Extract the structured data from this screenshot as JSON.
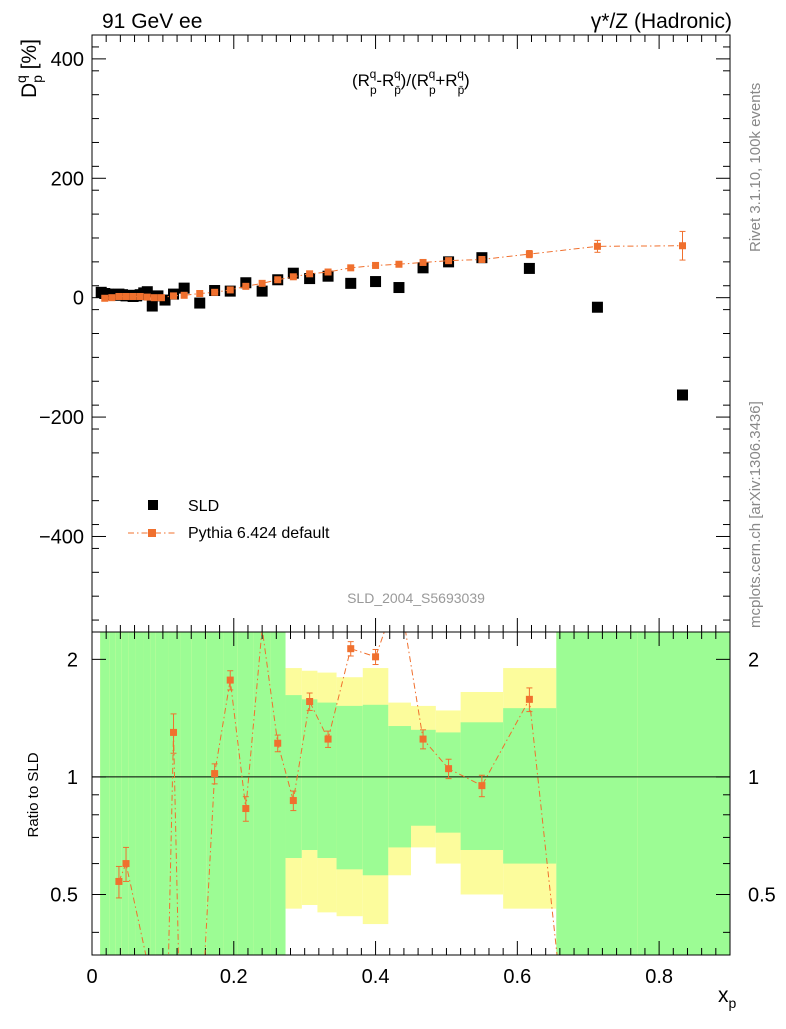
{
  "header": {
    "left": "91 GeV ee",
    "right": "γ*/Z (Hadronic)"
  },
  "side_text": {
    "rivet": "Rivet 3.1.10,  100k events",
    "mcplots": "mcplots.cern.ch [arXiv:1306.3436]"
  },
  "analysis_label": "SLD_2004_S5693039",
  "colors": {
    "data": "#000000",
    "mc": "#f0702e",
    "band_inner": "#9cfc94",
    "band_outer": "#fcfc9c"
  },
  "chart_data": [
    {
      "panel": "main",
      "type": "scatter",
      "ylabel": "D_p^q [%]",
      "annotation": "(R_p^q - R_p̄^q)/(R_p^q + R_p̄^q)",
      "xlim": [
        0,
        0.9
      ],
      "ylim": [
        -560,
        440
      ],
      "yticks": [
        -400,
        -200,
        0,
        200,
        400
      ],
      "ytick_labels": [
        "−400",
        "−200",
        "0",
        "200",
        "400"
      ],
      "legend_position": "lower-left",
      "series": [
        {
          "name": "SLD",
          "marker": "square",
          "x": [
            0.013,
            0.018,
            0.023,
            0.028,
            0.033,
            0.038,
            0.043,
            0.048,
            0.053,
            0.058,
            0.063,
            0.068,
            0.073,
            0.078,
            0.085,
            0.093,
            0.103,
            0.115,
            0.13,
            0.152,
            0.173,
            0.195,
            0.217,
            0.24,
            0.262,
            0.284,
            0.307,
            0.333,
            0.365,
            0.4,
            0.433,
            0.467,
            0.503,
            0.55,
            0.617,
            0.713,
            0.833
          ],
          "y": [
            9,
            7,
            6,
            5,
            4,
            6,
            5,
            3,
            4,
            2,
            3,
            5,
            8,
            10,
            -14,
            3,
            -4,
            6,
            16,
            -9,
            12,
            11,
            25,
            11,
            30,
            41,
            32,
            36,
            24,
            27,
            17,
            50,
            60,
            67,
            49,
            -16,
            -163
          ]
        },
        {
          "name": "Pythia 6.424 default",
          "marker": "square-dashdot",
          "x": [
            0.018,
            0.028,
            0.038,
            0.048,
            0.058,
            0.068,
            0.078,
            0.088,
            0.098,
            0.115,
            0.13,
            0.152,
            0.173,
            0.195,
            0.217,
            0.24,
            0.262,
            0.284,
            0.307,
            0.333,
            0.365,
            0.4,
            0.433,
            0.467,
            0.503,
            0.55,
            0.617,
            0.713,
            0.833
          ],
          "y": [
            -1,
            0,
            2,
            2,
            2,
            2,
            1,
            0,
            0,
            3,
            4,
            7,
            9,
            13,
            19,
            24,
            30,
            35,
            40,
            43,
            50,
            54,
            56,
            59,
            62,
            64,
            73,
            86,
            87
          ],
          "yerr": [
            3,
            3,
            3,
            3,
            3,
            3,
            3,
            3,
            3,
            3,
            3,
            3,
            3,
            3,
            3,
            3,
            3,
            3,
            3,
            3,
            3,
            3,
            3,
            3,
            3,
            4,
            6,
            10,
            24
          ]
        }
      ]
    },
    {
      "panel": "ratio",
      "type": "line",
      "ylabel": "Ratio to SLD",
      "xlabel": "x_p",
      "scale": "log",
      "xlim": [
        0,
        0.9
      ],
      "ylim": [
        0.35,
        2.35
      ],
      "xticks": [
        0,
        0.2,
        0.4,
        0.6,
        0.8
      ],
      "xtick_labels": [
        "0",
        "0.2",
        "0.4",
        "0.6",
        "0.8"
      ],
      "yticks": [
        0.5,
        1,
        2
      ],
      "ytick_labels": [
        "0.5",
        "1",
        "2"
      ],
      "bands": {
        "edges": [
          0.0115,
          0.0245,
          0.0335,
          0.042,
          0.052,
          0.062,
          0.072,
          0.082,
          0.09,
          0.108,
          0.125,
          0.14,
          0.162,
          0.185,
          0.205,
          0.228,
          0.252,
          0.273,
          0.296,
          0.318,
          0.345,
          0.382,
          0.418,
          0.45,
          0.485,
          0.52,
          0.58,
          0.655,
          0.77,
          0.9
        ],
        "inner_lo": [
          0.35,
          0.35,
          0.35,
          0.35,
          0.35,
          0.35,
          0.35,
          0.35,
          0.35,
          0.35,
          0.35,
          0.35,
          0.35,
          0.35,
          0.35,
          0.35,
          0.35,
          0.62,
          0.65,
          0.62,
          0.58,
          0.56,
          0.66,
          0.75,
          0.72,
          0.65,
          0.6,
          0.35,
          0.35
        ],
        "inner_hi": [
          2.35,
          2.35,
          2.35,
          2.35,
          2.35,
          2.35,
          2.35,
          2.35,
          2.35,
          2.35,
          2.35,
          2.35,
          2.35,
          2.35,
          2.35,
          2.35,
          2.35,
          1.62,
          1.58,
          1.55,
          1.52,
          1.53,
          1.35,
          1.32,
          1.3,
          1.38,
          1.5,
          2.35,
          2.35
        ],
        "outer_lo": [
          0.35,
          0.35,
          0.35,
          0.35,
          0.35,
          0.35,
          0.35,
          0.35,
          0.35,
          0.35,
          0.35,
          0.35,
          0.35,
          0.35,
          0.35,
          0.35,
          0.35,
          0.46,
          0.47,
          0.45,
          0.44,
          0.42,
          0.56,
          0.66,
          0.6,
          0.5,
          0.46,
          0.35,
          0.35
        ],
        "outer_hi": [
          2.35,
          2.35,
          2.35,
          2.35,
          2.35,
          2.35,
          2.35,
          2.35,
          2.35,
          2.35,
          2.35,
          2.35,
          2.35,
          2.35,
          2.35,
          2.35,
          2.35,
          1.9,
          1.87,
          1.85,
          1.8,
          1.9,
          1.55,
          1.52,
          1.48,
          1.65,
          1.9,
          2.35,
          2.35
        ]
      },
      "series": [
        {
          "name": "Pythia 6.424 default",
          "x": [
            0.038,
            0.048,
            0.105,
            0.115,
            0.125,
            0.152,
            0.173,
            0.195,
            0.217,
            0.24,
            0.262,
            0.284,
            0.307,
            0.333,
            0.365,
            0.4,
            0.433,
            0.467,
            0.503,
            0.55,
            0.617,
            0.66
          ],
          "y": [
            0.54,
            0.6,
            0.2,
            1.3,
            0.2,
            0.2,
            1.02,
            1.77,
            0.83,
            2.4,
            1.22,
            0.87,
            1.56,
            1.25,
            2.13,
            2.03,
            3.0,
            1.25,
            1.05,
            0.95,
            1.58,
            0.3
          ],
          "yerr": [
            0.05,
            0.06,
            0.02,
            0.15,
            0.02,
            0.02,
            0.06,
            0.1,
            0.06,
            0.1,
            0.06,
            0.05,
            0.08,
            0.06,
            0.09,
            0.09,
            0.1,
            0.07,
            0.06,
            0.06,
            0.11,
            0.02
          ]
        }
      ]
    }
  ]
}
